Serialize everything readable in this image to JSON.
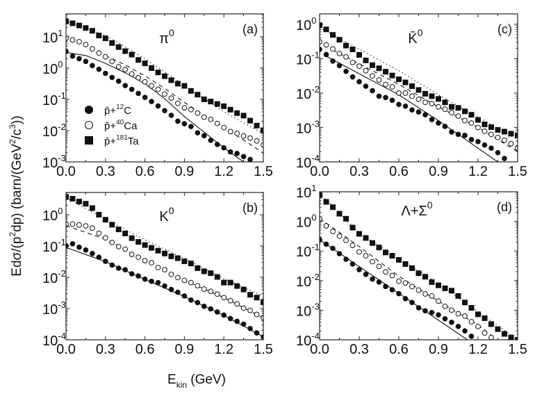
{
  "figure": {
    "ylabel": {
      "parts": [
        [
          "Ed",
          "n"
        ],
        [
          "σ",
          "n"
        ],
        [
          "/(p",
          "n"
        ],
        [
          "2",
          "sup"
        ],
        [
          "dp) (barn/(GeV",
          "n"
        ],
        [
          "2",
          "sup"
        ],
        [
          "/c",
          "n"
        ],
        [
          "3",
          "sup"
        ],
        [
          "))",
          "n"
        ]
      ]
    },
    "xlabel": {
      "main": "E",
      "sub": "kin",
      "post": " (GeV)"
    }
  },
  "chart_data": [
    {
      "id": "a",
      "type": "scatter",
      "yscale": "log",
      "tag": "(a)",
      "title": {
        "main": "π",
        "sup": "0"
      },
      "xlim": [
        0,
        1.5
      ],
      "ylim_log10": [
        -3,
        1.73
      ],
      "xticks": [
        0.0,
        0.3,
        0.6,
        0.9,
        1.2,
        1.5
      ],
      "xtick_labels": [
        "0.0",
        "0.3",
        "0.6",
        "0.9",
        "1.2",
        "1.5"
      ],
      "yticks_log10": [
        1,
        0,
        -1,
        -2,
        -3
      ],
      "ytick_labels": [
        {
          "base": "10",
          "exp": "1"
        },
        {
          "base": "10",
          "exp": "0"
        },
        {
          "base": "10",
          "exp": "-1"
        },
        {
          "base": "10",
          "exp": "-2"
        },
        {
          "base": "10",
          "exp": "-3"
        }
      ],
      "legend": {
        "placement": "center-left",
        "entries": [
          {
            "marker": "filled-circle",
            "pre": "p̄+",
            "sup": "12",
            "post": "C"
          },
          {
            "marker": "open-circle",
            "pre": "p̄+",
            "sup": "40",
            "post": "Ca"
          },
          {
            "marker": "filled-square",
            "pre": "p̄+",
            "sup": "181",
            "post": "Ta"
          }
        ]
      },
      "x": [
        0,
        0.05,
        0.1,
        0.15,
        0.2,
        0.25,
        0.3,
        0.35,
        0.4,
        0.45,
        0.5,
        0.55,
        0.6,
        0.65,
        0.7,
        0.75,
        0.8,
        0.85,
        0.9,
        0.95,
        1.0,
        1.05,
        1.1,
        1.15,
        1.2,
        1.25,
        1.3,
        1.35,
        1.4,
        1.45,
        1.5
      ],
      "series": [
        {
          "name": "p̄+12C",
          "marker": "filled-circle",
          "y_log10": [
            0.53,
            0.38,
            0.3,
            0.21,
            0.08,
            -0.04,
            -0.17,
            -0.3,
            -0.42,
            -0.56,
            -0.68,
            -0.81,
            -0.94,
            -1.07,
            -1.21,
            -1.36,
            -1.51,
            -1.7,
            -1.78,
            -1.87,
            -2.07,
            -2.16,
            -2.31,
            -2.44,
            -2.55,
            -2.68,
            -2.73,
            -2.83,
            -2.92,
            null,
            null
          ]
        },
        {
          "name": "p̄+40Ca",
          "marker": "open-circle",
          "y_log10": [
            0.95,
            0.9,
            0.84,
            0.75,
            0.61,
            0.48,
            0.36,
            0.21,
            0.04,
            -0.05,
            -0.19,
            -0.31,
            -0.44,
            -0.57,
            -0.68,
            -0.83,
            -0.96,
            -1.13,
            -1.27,
            -1.33,
            -1.44,
            -1.57,
            -1.64,
            -1.77,
            -1.9,
            -2.03,
            -2.09,
            -2.17,
            -2.24,
            -2.33,
            -2.46
          ]
        },
        {
          "name": "p̄+181Ta",
          "marker": "filled-square",
          "y_log10": [
            1.49,
            1.43,
            1.36,
            1.28,
            1.19,
            1.04,
            0.95,
            0.8,
            0.67,
            0.54,
            0.43,
            0.26,
            0.15,
            0.0,
            -0.14,
            -0.26,
            -0.39,
            -0.5,
            -0.57,
            -0.73,
            -0.85,
            -1.0,
            -1.07,
            -1.15,
            -1.22,
            -1.33,
            -1.44,
            -1.52,
            -1.68,
            -1.84,
            -1.99
          ]
        }
      ],
      "curves": [
        {
          "name": "model p̄+12C",
          "style": "solid",
          "x": [
            0,
            0.15,
            0.3,
            0.45,
            0.6,
            0.75,
            0.9,
            1.05,
            1.2,
            1.35
          ],
          "y_log10": [
            0.5,
            0.4,
            0.15,
            -0.15,
            -0.5,
            -0.98,
            -1.55,
            -2.05,
            -2.55,
            -3.0
          ]
        },
        {
          "name": "model p̄+40Ca",
          "style": "dashed",
          "x": [
            0.3,
            0.45,
            0.6,
            0.75,
            0.9,
            1.05,
            1.2,
            1.35,
            1.5
          ],
          "y_log10": [
            0.4,
            0.1,
            -0.25,
            -0.65,
            -1.1,
            -1.5,
            -1.9,
            -2.3,
            -2.72
          ]
        },
        {
          "name": "model p̄+181Ta",
          "style": "dotted",
          "x": [
            0,
            0.3,
            0.6,
            0.9,
            1.2,
            1.5
          ],
          "y_log10": [
            1.5,
            1.05,
            0.3,
            -0.55,
            -1.4,
            -2.1
          ]
        }
      ]
    },
    {
      "id": "c",
      "type": "scatter",
      "yscale": "log",
      "tag": "(c)",
      "title": {
        "main": "K̄",
        "sup": "0"
      },
      "xlim": [
        0,
        1.5
      ],
      "ylim_log10": [
        -4,
        0.3
      ],
      "xticks": [
        0.0,
        0.3,
        0.6,
        0.9,
        1.2,
        1.5
      ],
      "xtick_labels": [
        "0.0",
        "0.3",
        "0.6",
        "0.9",
        "1.2",
        "1.5"
      ],
      "yticks_log10": [
        0,
        -1,
        -2,
        -3,
        -4
      ],
      "ytick_labels": [
        {
          "base": "10",
          "exp": "0"
        },
        {
          "base": "10",
          "exp": "-1"
        },
        {
          "base": "10",
          "exp": "-2"
        },
        {
          "base": "10",
          "exp": "-3"
        },
        {
          "base": "10",
          "exp": "-4"
        }
      ],
      "x": [
        0,
        0.05,
        0.1,
        0.15,
        0.2,
        0.25,
        0.3,
        0.35,
        0.4,
        0.45,
        0.5,
        0.55,
        0.6,
        0.65,
        0.7,
        0.75,
        0.8,
        0.85,
        0.9,
        0.95,
        1.0,
        1.05,
        1.1,
        1.15,
        1.2,
        1.25,
        1.3,
        1.35,
        1.4,
        1.45,
        1.5
      ],
      "series": [
        {
          "name": "p̄+12C",
          "marker": "filled-circle",
          "y_log10": [
            -0.73,
            -0.88,
            -1.07,
            -1.2,
            -1.37,
            -1.53,
            -1.67,
            -1.8,
            -1.93,
            -2.09,
            -2.13,
            -2.21,
            -2.33,
            -2.38,
            -2.49,
            -2.55,
            -2.63,
            -2.77,
            -2.87,
            -2.97,
            -3.13,
            -3.2,
            -3.23,
            -3.35,
            -3.41,
            -3.51,
            -3.6,
            -3.73,
            -3.9,
            null,
            null
          ]
        },
        {
          "name": "p̄+40Ca",
          "marker": "open-circle",
          "y_log10": [
            -0.51,
            -0.6,
            -0.72,
            -0.85,
            -0.95,
            -1.11,
            -1.22,
            -1.35,
            -1.5,
            -1.62,
            -1.75,
            -1.82,
            -2.0,
            -2.0,
            -2.09,
            -2.18,
            -2.27,
            -2.31,
            -2.4,
            -2.47,
            -2.57,
            -2.67,
            -2.8,
            -2.87,
            -3.0,
            -3.11,
            -3.2,
            -3.29,
            -3.37,
            -3.47,
            -3.6
          ]
        },
        {
          "name": "p̄+181Ta",
          "marker": "filled-square",
          "y_log10": [
            -0.03,
            -0.15,
            -0.31,
            -0.45,
            -0.62,
            -0.73,
            -0.89,
            -1.05,
            -1.19,
            -1.28,
            -1.38,
            -1.49,
            -1.6,
            -1.69,
            -1.8,
            -1.91,
            -2.02,
            -2.09,
            -2.17,
            -2.27,
            -2.4,
            -2.43,
            -2.53,
            -2.63,
            -2.78,
            -2.91,
            -2.99,
            -3.07,
            -3.12,
            -3.18,
            -3.23
          ]
        }
      ],
      "curves": [
        {
          "name": "model p̄+12C",
          "style": "solid",
          "x": [
            0.05,
            0.6,
            0.9,
            1.35
          ],
          "y_log10": [
            -0.93,
            -2.05,
            -2.8,
            -4.0
          ]
        },
        {
          "name": "model p̄+40Ca",
          "style": "dashed",
          "x": [
            0.1,
            0.6,
            0.9,
            1.2,
            1.5
          ],
          "y_log10": [
            -0.75,
            -1.75,
            -2.4,
            -3.0,
            -3.7
          ]
        },
        {
          "name": "model p̄+181Ta",
          "style": "dotted",
          "x": [
            0,
            0.6,
            0.9,
            1.2,
            1.5
          ],
          "y_log10": [
            -0.1,
            -1.35,
            -2.05,
            -2.7,
            -3.35
          ]
        }
      ]
    },
    {
      "id": "b",
      "type": "scatter",
      "yscale": "log",
      "tag": "(b)",
      "title": {
        "main": "K",
        "sup": "0"
      },
      "xlim": [
        0,
        1.5
      ],
      "ylim_log10": [
        -4,
        0.71
      ],
      "xticks": [
        0.0,
        0.3,
        0.6,
        0.9,
        1.2,
        1.5
      ],
      "xtick_labels": [
        "0.0",
        "0.3",
        "0.6",
        "0.9",
        "1.2",
        "1.5"
      ],
      "yticks_log10": [
        0,
        -1,
        -2,
        -3,
        -4
      ],
      "ytick_labels": [
        {
          "base": "10",
          "exp": "0"
        },
        {
          "base": "10",
          "exp": "-1"
        },
        {
          "base": "10",
          "exp": "-2"
        },
        {
          "base": "10",
          "exp": "-3"
        },
        {
          "base": "10",
          "exp": "-4"
        }
      ],
      "x": [
        0,
        0.05,
        0.1,
        0.15,
        0.2,
        0.25,
        0.3,
        0.35,
        0.4,
        0.45,
        0.5,
        0.55,
        0.6,
        0.65,
        0.7,
        0.75,
        0.8,
        0.85,
        0.9,
        0.95,
        1.0,
        1.05,
        1.1,
        1.15,
        1.2,
        1.25,
        1.3,
        1.35,
        1.4,
        1.45,
        1.5
      ],
      "series": [
        {
          "name": "p̄+12C",
          "marker": "filled-circle",
          "y_log10": [
            -0.99,
            -0.93,
            -1.04,
            -1.13,
            -1.24,
            -1.36,
            -1.49,
            -1.61,
            -1.71,
            -1.76,
            -1.89,
            -1.96,
            -2.06,
            -2.13,
            -2.17,
            -2.28,
            -2.39,
            -2.48,
            -2.6,
            -2.73,
            -2.81,
            -2.93,
            -3.01,
            -3.11,
            -3.21,
            -3.32,
            -3.41,
            -3.5,
            -3.64,
            -3.78,
            -3.91
          ]
        },
        {
          "name": "p̄+40Ca",
          "marker": "open-circle",
          "y_log10": [
            -0.3,
            -0.3,
            -0.33,
            -0.36,
            -0.43,
            -0.59,
            -0.74,
            -0.89,
            -1.02,
            -1.1,
            -1.27,
            -1.36,
            -1.47,
            -1.54,
            -1.69,
            -1.76,
            -1.91,
            -2.01,
            -2.1,
            -2.17,
            -2.27,
            -2.38,
            -2.45,
            -2.54,
            -2.65,
            -2.75,
            -2.85,
            -2.99,
            -3.06,
            -3.19,
            -3.3
          ]
        },
        {
          "name": "p̄+181Ta",
          "marker": "filled-square",
          "y_log10": [
            0.57,
            0.51,
            0.42,
            0.35,
            0.21,
            0.0,
            -0.16,
            -0.32,
            -0.47,
            -0.6,
            -0.75,
            -0.87,
            -0.97,
            -1.06,
            -1.15,
            -1.24,
            -1.33,
            -1.39,
            -1.49,
            -1.56,
            -1.71,
            -1.81,
            -1.87,
            -1.99,
            -2.17,
            -2.17,
            -2.28,
            -2.39,
            -2.56,
            -2.65,
            -2.8
          ]
        }
      ],
      "curves": [
        {
          "name": "model p̄+12C",
          "style": "solid",
          "x": [
            0,
            0.3,
            0.6,
            0.9,
            1.2,
            1.5
          ],
          "y_log10": [
            -1.05,
            -1.5,
            -2.07,
            -2.62,
            -3.22,
            -3.9
          ]
        },
        {
          "name": "model p̄+40Ca",
          "style": "dashed",
          "x": [
            0,
            0.3,
            0.6,
            0.9,
            1.2,
            1.5
          ],
          "y_log10": [
            -0.35,
            -0.78,
            -1.47,
            -2.1,
            -2.65,
            -3.3
          ]
        },
        {
          "name": "model p̄+181Ta",
          "style": "dotted",
          "x": [
            0,
            0.3,
            0.6,
            0.9,
            1.2,
            1.5
          ],
          "y_log10": [
            0.55,
            -0.15,
            -0.8,
            -1.4,
            -2.05,
            -2.6
          ]
        }
      ]
    },
    {
      "id": "d",
      "type": "scatter",
      "yscale": "log",
      "tag": "(d)",
      "title": {
        "main": "Λ+Σ",
        "sup": "0"
      },
      "xlim": [
        0,
        1.5
      ],
      "ylim_log10": [
        -4,
        1.0
      ],
      "xticks": [
        0.0,
        0.3,
        0.6,
        0.9,
        1.2,
        1.5
      ],
      "xtick_labels": [
        "0.0",
        "0.3",
        "0.6",
        "0.9",
        "1.2",
        "1.5"
      ],
      "yticks_log10": [
        1,
        0,
        -1,
        -2,
        -3,
        -4
      ],
      "ytick_labels": [
        {
          "base": "10",
          "exp": "1"
        },
        {
          "base": "10",
          "exp": "0"
        },
        {
          "base": "10",
          "exp": "-1"
        },
        {
          "base": "10",
          "exp": "-2"
        },
        {
          "base": "10",
          "exp": "-3"
        },
        {
          "base": "10",
          "exp": "-4"
        }
      ],
      "x": [
        0,
        0.05,
        0.1,
        0.15,
        0.2,
        0.25,
        0.3,
        0.35,
        0.4,
        0.45,
        0.5,
        0.55,
        0.6,
        0.65,
        0.7,
        0.75,
        0.8,
        0.85,
        0.9,
        0.95,
        1.0,
        1.05,
        1.1,
        1.15,
        1.2,
        1.25,
        1.3,
        1.35,
        1.4,
        1.45,
        1.5
      ],
      "series": [
        {
          "name": "p̄+12C",
          "marker": "filled-circle",
          "y_log10": [
            -0.62,
            -0.77,
            -0.91,
            -1.09,
            -1.28,
            -1.44,
            -1.63,
            -1.79,
            -1.95,
            -2.05,
            -2.2,
            -2.31,
            -2.44,
            -2.61,
            -2.74,
            -2.92,
            -3.02,
            -3.08,
            -3.16,
            -3.29,
            -3.41,
            -3.55,
            -3.7,
            -3.88,
            null,
            null,
            null,
            null,
            null,
            null,
            null
          ]
        },
        {
          "name": "p̄+40Ca",
          "marker": "open-circle",
          "y_log10": [
            0.09,
            -0.15,
            -0.34,
            -0.5,
            -0.64,
            -0.81,
            -1.03,
            -1.16,
            -1.36,
            -1.52,
            -1.71,
            -1.83,
            -2.02,
            -2.08,
            -2.2,
            -2.32,
            -2.45,
            -2.52,
            -2.69,
            -2.87,
            -3.0,
            -3.12,
            -3.2,
            -3.39,
            -3.55,
            -3.77,
            -3.92,
            null,
            null,
            null,
            null
          ]
        },
        {
          "name": "p̄+181Ta",
          "marker": "filled-square",
          "y_log10": [
            0.89,
            0.66,
            0.48,
            0.26,
            0.09,
            -0.21,
            -0.42,
            -0.56,
            -0.73,
            -0.88,
            -1.05,
            -1.16,
            -1.3,
            -1.44,
            -1.58,
            -1.75,
            -1.87,
            -2.05,
            -2.16,
            -2.26,
            -2.34,
            -2.52,
            -2.74,
            -2.92,
            -3.14,
            -3.27,
            -3.47,
            -3.64,
            -3.8,
            -3.92,
            -4.0
          ]
        }
      ],
      "curves": [
        {
          "name": "model p̄+12C",
          "style": "solid",
          "x": [
            0,
            1.12
          ],
          "y_log10": [
            -0.62,
            -4.0
          ]
        },
        {
          "name": "model p̄+40Ca",
          "style": "dashed",
          "x": [
            0,
            0.3,
            0.6,
            0.9,
            1.2,
            1.3
          ],
          "y_log10": [
            0.1,
            -0.85,
            -1.85,
            -2.7,
            -3.5,
            -3.85
          ]
        },
        {
          "name": "model p̄+181Ta",
          "style": "dotted",
          "x": [
            0,
            0.3,
            0.6,
            0.9,
            1.2,
            1.5
          ],
          "y_log10": [
            0.95,
            -0.4,
            -1.25,
            -2.1,
            -3.05,
            -4.0
          ]
        }
      ]
    }
  ]
}
